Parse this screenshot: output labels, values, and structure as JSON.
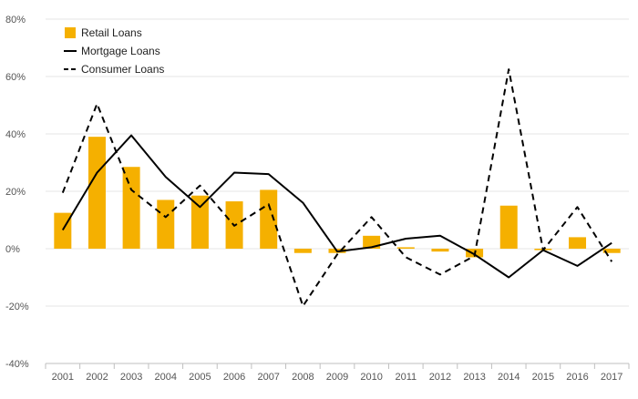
{
  "chart_data": {
    "type": "bar",
    "title": "",
    "xlabel": "",
    "ylabel": "",
    "ylim": [
      -40,
      80
    ],
    "y_ticks": [
      -40,
      -20,
      0,
      20,
      40,
      60,
      80
    ],
    "y_tick_labels": [
      "-40%",
      "-20%",
      "0%",
      "20%",
      "40%",
      "60%",
      "80%"
    ],
    "grid": true,
    "legend_position": "top-left",
    "categories": [
      "2001",
      "2002",
      "2003",
      "2004",
      "2005",
      "2006",
      "2007",
      "2008",
      "2009",
      "2010",
      "2011",
      "2012",
      "2013",
      "2014",
      "2015",
      "2016",
      "2017"
    ],
    "series": [
      {
        "name": "Retail Loans",
        "kind": "bar",
        "color": "#f5b000",
        "values": [
          12.5,
          39,
          28.5,
          17,
          18.5,
          16.5,
          20.5,
          -1.5,
          -1.5,
          4.5,
          0.5,
          -1,
          -3,
          15,
          -0.5,
          4,
          -1.5
        ]
      },
      {
        "name": "Mortgage Loans",
        "kind": "line",
        "style": "solid",
        "color": "#000000",
        "values": [
          6.5,
          26.5,
          39.5,
          25,
          14.5,
          26.5,
          26,
          16,
          -1,
          0.5,
          3.5,
          4.5,
          -2,
          -10,
          -0.5,
          -6,
          2
        ]
      },
      {
        "name": "Consumer Loans",
        "kind": "line",
        "style": "dashed",
        "color": "#000000",
        "values": [
          19.5,
          50.5,
          20.5,
          11,
          22,
          8,
          15.5,
          -20,
          -2,
          11,
          -3,
          -9,
          -2.5,
          62.5,
          -0.5,
          14.5,
          -4.5
        ]
      }
    ]
  }
}
